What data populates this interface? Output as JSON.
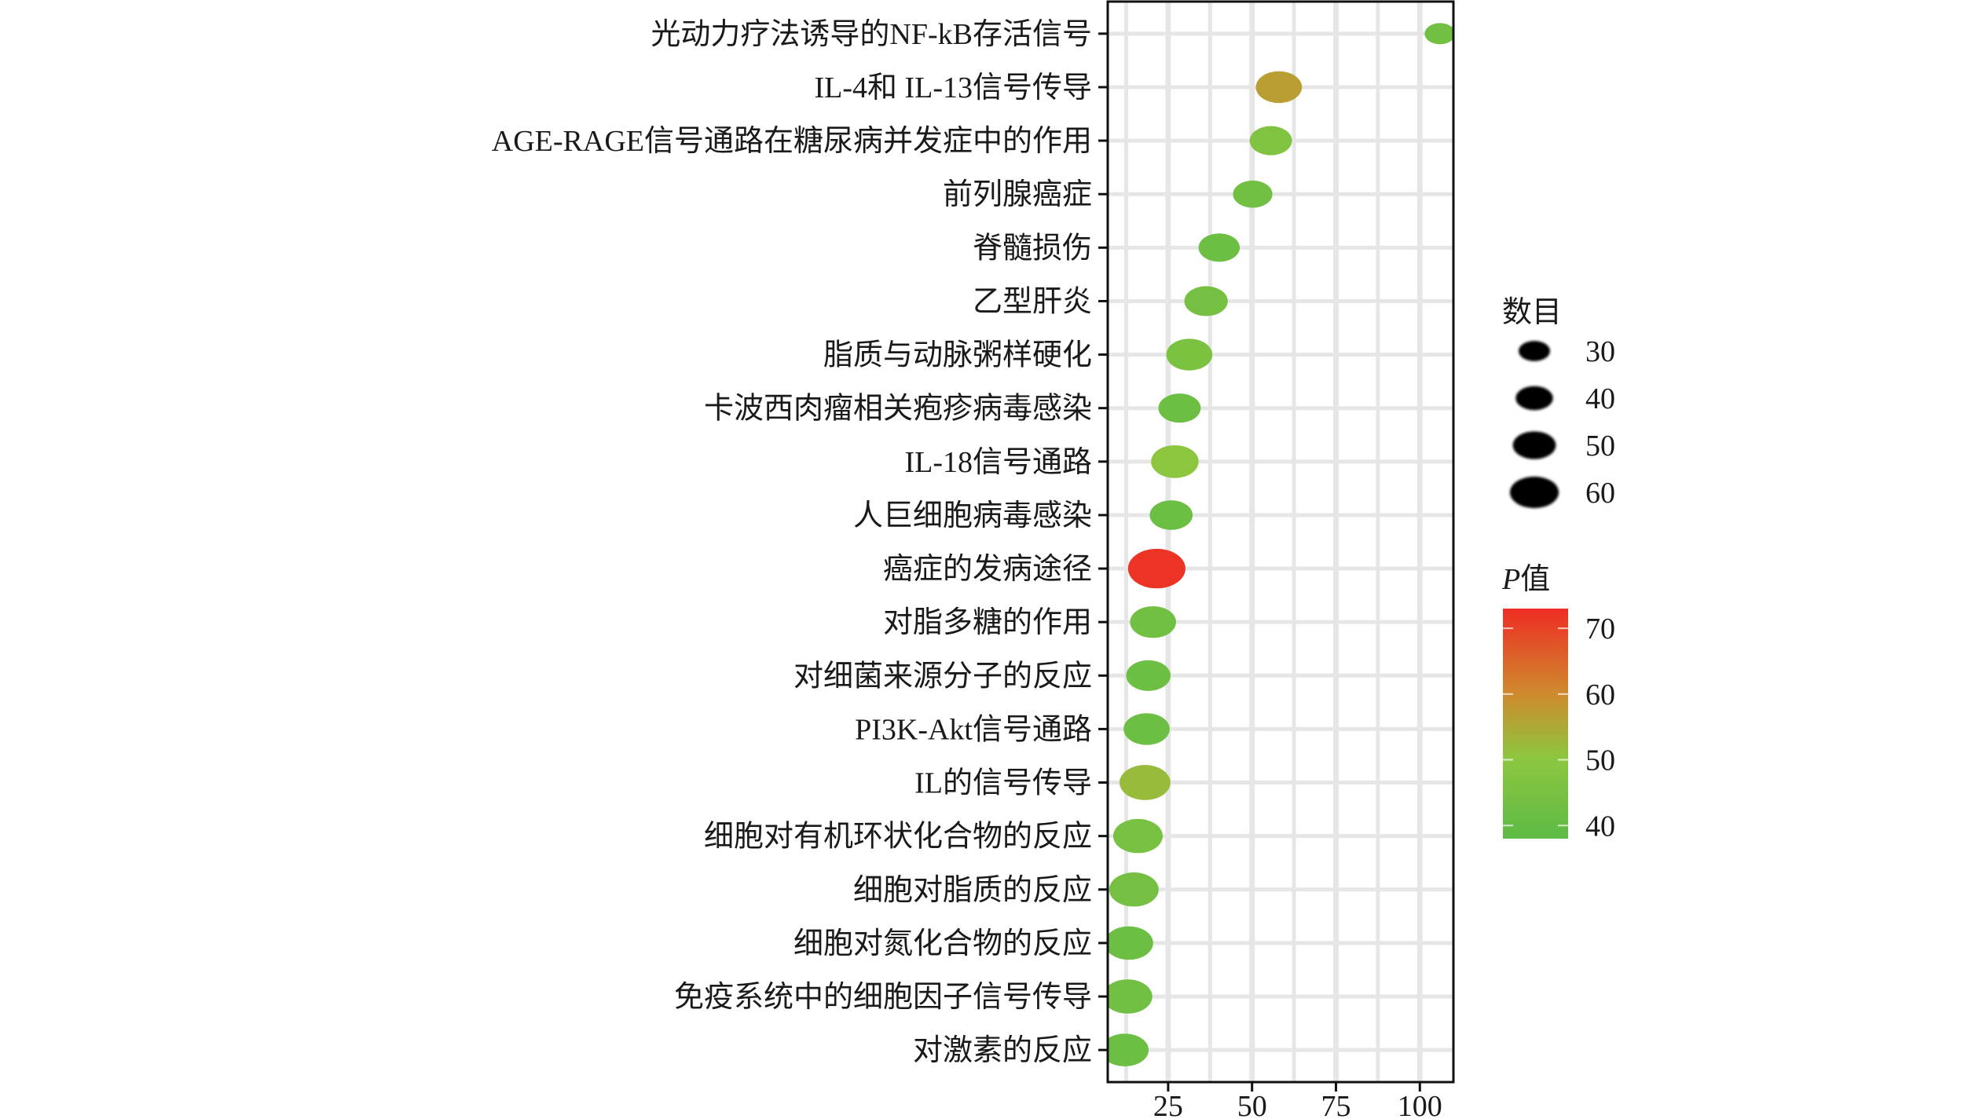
{
  "chart_data": {
    "type": "scatter",
    "subtype": "bubble",
    "title": "",
    "xlabel": "",
    "ylabel": "",
    "xlim": [
      7,
      110
    ],
    "x_ticks": [
      25,
      50,
      75,
      100
    ],
    "grid": true,
    "categories": [
      "光动力疗法诱导的NF-kB存活信号",
      "IL-4和 IL-13信号传导",
      "AGE-RAGE信号通路在糖尿病并发症中的作用",
      "前列腺癌症",
      "脊髓损伤",
      "乙型肝炎",
      "脂质与动脉粥样硬化",
      "卡波西肉瘤相关疱疹病毒感染",
      "IL-18信号通路",
      "人巨细胞病毒感染",
      "癌症的发病途径",
      "对脂多糖的作用",
      "对细菌来源分子的反应",
      "PI3K-Akt信号通路",
      "IL的信号传导",
      "细胞对有机环状化合物的反应",
      "细胞对脂质的反应",
      "细胞对氮化合物的反应",
      "免疫系统中的细胞因子信号传导",
      "对激素的反应"
    ],
    "x": [
      106,
      58,
      55.6,
      50.2,
      40.2,
      36.3,
      31.3,
      28.4,
      27,
      25.9,
      21.6,
      20.5,
      19.1,
      18.6,
      18.1,
      16,
      14.8,
      13.3,
      12.9,
      12.1
    ],
    "count": [
      20,
      45,
      38,
      33,
      36,
      40,
      45,
      38,
      48,
      39,
      70,
      45,
      42,
      45,
      55,
      52,
      52,
      50,
      52,
      48
    ],
    "p_value": [
      43,
      57,
      47,
      43,
      42,
      44,
      46,
      42,
      50,
      42,
      72,
      43,
      42,
      42,
      52,
      45,
      44,
      42,
      43,
      42
    ],
    "legend": {
      "size_title": "数目",
      "size_values": [
        30,
        40,
        50,
        60
      ],
      "size_labels": [
        "30",
        "40",
        "50",
        "60"
      ],
      "color_title_italic": "P",
      "color_title": "值",
      "color_ticks": [
        70,
        60,
        50,
        40
      ],
      "color_labels": [
        "70",
        "60",
        "50",
        "40"
      ],
      "color_range": [
        38,
        73
      ],
      "colors": {
        "low": "#5dbb46",
        "mid": "#8dc63f",
        "high_mid": "#cf8a2e",
        "high": "#ee2d24"
      }
    }
  }
}
